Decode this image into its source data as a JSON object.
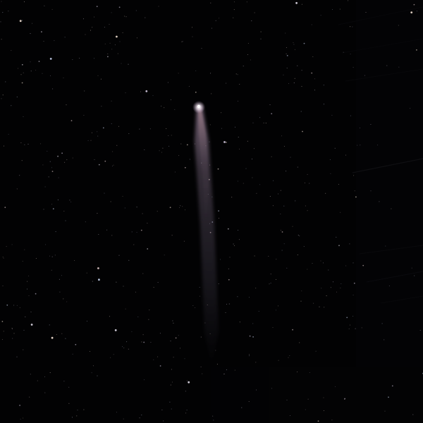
{
  "scene": {
    "subject": "comet-with-tail",
    "background_color": "#020203",
    "star_color": "#d8d4e0",
    "comet_head_color": "#ffffff",
    "comet_tail_color": "#b09ab8"
  }
}
